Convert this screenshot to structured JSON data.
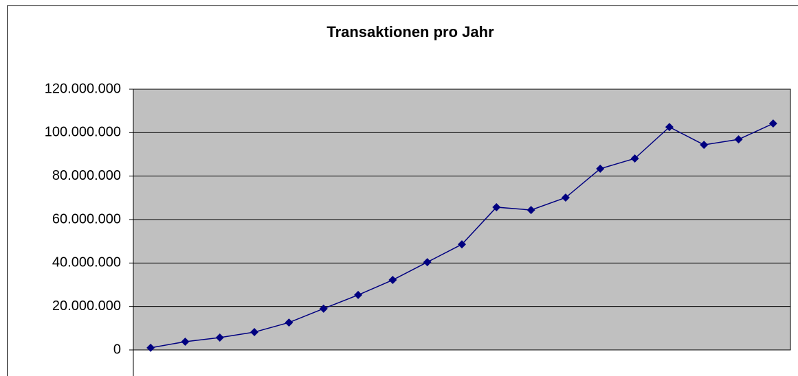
{
  "chart_data": {
    "type": "line",
    "title": "Transaktionen pro Jahr",
    "categories": [
      null,
      null,
      null,
      null,
      null,
      null,
      null,
      null,
      null,
      null,
      null,
      null,
      null,
      null,
      null,
      null,
      null,
      null,
      null
    ],
    "series": [
      {
        "name": null,
        "color": "#000080",
        "values": [
          1000000,
          3800000,
          5700000,
          8200000,
          12600000,
          19000000,
          25300000,
          32200000,
          40400000,
          48600000,
          65700000,
          64400000,
          70100000,
          83400000,
          88100000,
          102600000,
          94400000,
          96900000,
          104200000
        ]
      }
    ],
    "ylim": [
      0,
      120000000
    ],
    "yticks": [
      0,
      {
        "value": 20000000,
        "label": "20.000.000"
      },
      {
        "value": 40000000,
        "label": "40.000.000"
      },
      {
        "value": 60000000,
        "label": "60.000.000"
      },
      {
        "value": 80000000,
        "label": "80.000.000"
      },
      {
        "value": 100000000,
        "label": "100.000.000"
      },
      {
        "value": 120000000,
        "label": "120.000.000"
      }
    ],
    "grid": true,
    "plot_background": "#c0c0c0"
  }
}
